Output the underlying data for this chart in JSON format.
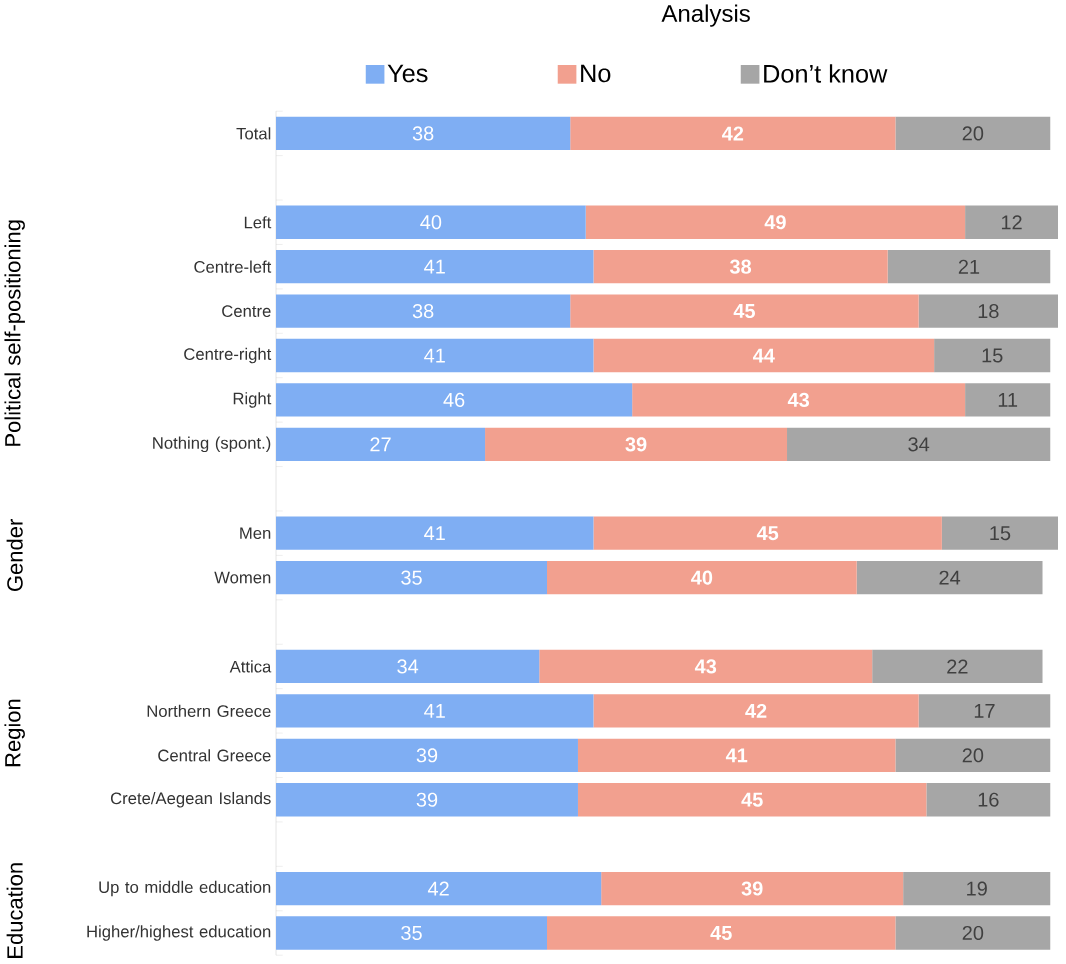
{
  "chart_data": {
    "type": "bar",
    "orientation": "horizontal",
    "stacked": true,
    "title": "Analysis",
    "categories": [
      "Total",
      null,
      "Left",
      "Centre-left",
      "Centre",
      "Centre-right",
      "Right",
      "Nothing (spont.)",
      null,
      "Men",
      "Women",
      null,
      "Attica",
      "Northern Greece",
      "Central Greece",
      "Crete/Aegean Islands",
      null,
      "Up to middle education",
      "Higher/highest education"
    ],
    "series": [
      {
        "name": "Yes",
        "color": "#7faef3",
        "values": [
          38,
          null,
          40,
          41,
          38,
          41,
          46,
          27,
          null,
          41,
          35,
          null,
          34,
          41,
          39,
          39,
          null,
          42,
          35
        ]
      },
      {
        "name": "No",
        "color": "#f2a08f",
        "values": [
          42,
          null,
          49,
          38,
          45,
          44,
          43,
          39,
          null,
          45,
          40,
          null,
          43,
          42,
          41,
          45,
          null,
          39,
          45
        ]
      },
      {
        "name": "Don’t know",
        "color": "#a6a6a6",
        "values": [
          20,
          null,
          12,
          21,
          18,
          15,
          11,
          34,
          null,
          15,
          24,
          null,
          22,
          17,
          20,
          16,
          null,
          19,
          20
        ]
      }
    ],
    "annotations": [
      "Political self-positioning",
      "Gender",
      "Region",
      "Education"
    ],
    "data_labels": true,
    "legend": "top"
  }
}
